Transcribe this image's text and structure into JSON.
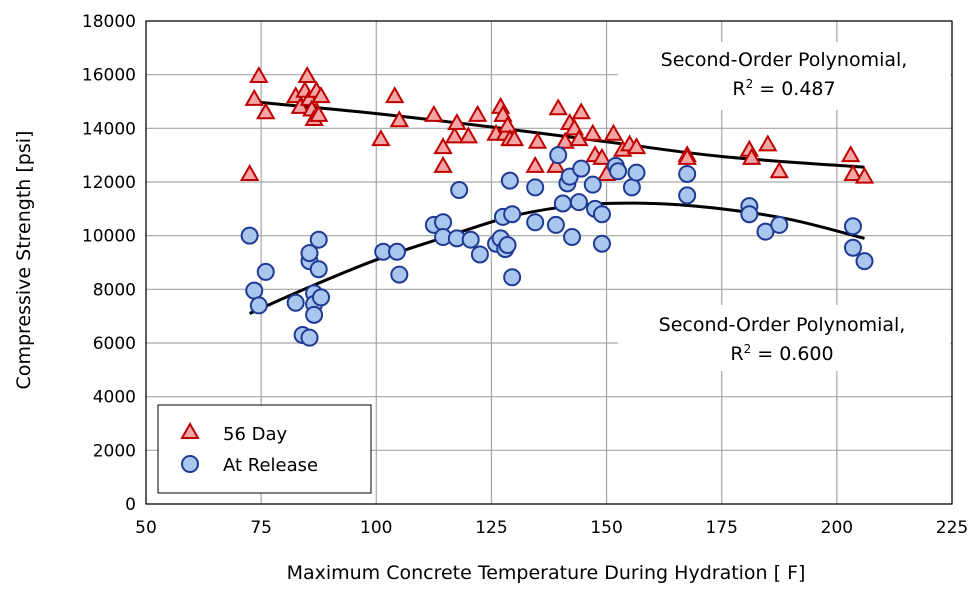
{
  "chart_data": {
    "type": "scatter",
    "xlabel": "Maximum Concrete Temperature During Hydration [ F]",
    "ylabel": "Compressive Strength [psi]",
    "xlim": [
      50,
      225
    ],
    "ylim": [
      0,
      18000
    ],
    "x_ticks": [
      "50",
      "75",
      "100",
      "125",
      "150",
      "175",
      "200",
      "225"
    ],
    "y_ticks": [
      "0",
      "2000",
      "4000",
      "6000",
      "8000",
      "10000",
      "12000",
      "14000",
      "16000",
      "18000"
    ],
    "x_tick_values": [
      50,
      75,
      100,
      125,
      150,
      175,
      200,
      225
    ],
    "y_tick_values": [
      0,
      2000,
      4000,
      6000,
      8000,
      10000,
      12000,
      14000,
      16000,
      18000
    ],
    "grid": true,
    "legend_position": "bottom-left",
    "series": [
      {
        "name": "56 Day",
        "marker": "triangle",
        "fill": "#F4A6A6",
        "stroke": "#C00000",
        "points": [
          [
            72.5,
            12300
          ],
          [
            73.5,
            15100
          ],
          [
            74.5,
            15950
          ],
          [
            76,
            14600
          ],
          [
            82.5,
            15200
          ],
          [
            83.5,
            14800
          ],
          [
            84.5,
            15400
          ],
          [
            85,
            15950
          ],
          [
            85.5,
            15100
          ],
          [
            86,
            14700
          ],
          [
            86.5,
            14350
          ],
          [
            87,
            15400
          ],
          [
            87.5,
            14500
          ],
          [
            88,
            15200
          ],
          [
            101,
            13600
          ],
          [
            104,
            15200
          ],
          [
            105,
            14300
          ],
          [
            112.5,
            14500
          ],
          [
            114.5,
            13300
          ],
          [
            114.5,
            12600
          ],
          [
            117,
            13700
          ],
          [
            117.5,
            14200
          ],
          [
            120,
            13700
          ],
          [
            122,
            14500
          ],
          [
            126,
            13800
          ],
          [
            127,
            14800
          ],
          [
            127.5,
            14500
          ],
          [
            128,
            13800
          ],
          [
            128.5,
            14100
          ],
          [
            129,
            13600
          ],
          [
            130,
            13600
          ],
          [
            134.5,
            12600
          ],
          [
            135,
            13500
          ],
          [
            139,
            12600
          ],
          [
            139.5,
            14750
          ],
          [
            141,
            13500
          ],
          [
            142,
            14200
          ],
          [
            143,
            14000
          ],
          [
            144,
            13600
          ],
          [
            144.5,
            14600
          ],
          [
            147,
            13800
          ],
          [
            147.5,
            13000
          ],
          [
            149,
            12900
          ],
          [
            150,
            12300
          ],
          [
            151.5,
            13800
          ],
          [
            153.5,
            13200
          ],
          [
            155,
            13400
          ],
          [
            156.5,
            13300
          ],
          [
            167.5,
            13000
          ],
          [
            167.5,
            12900
          ],
          [
            181,
            13200
          ],
          [
            181.5,
            12900
          ],
          [
            185,
            13400
          ],
          [
            187.5,
            12400
          ],
          [
            203,
            13000
          ],
          [
            203.5,
            12300
          ],
          [
            206,
            12200
          ]
        ]
      },
      {
        "name": "At Release",
        "marker": "circle",
        "fill": "#A9C6EE",
        "stroke": "#1F3A93",
        "points": [
          [
            72.5,
            10000
          ],
          [
            73.5,
            7950
          ],
          [
            74.5,
            7400
          ],
          [
            76,
            8650
          ],
          [
            82.5,
            7500
          ],
          [
            84,
            6300
          ],
          [
            85.5,
            6200
          ],
          [
            85.5,
            9050
          ],
          [
            85.5,
            9350
          ],
          [
            86.5,
            7850
          ],
          [
            86.5,
            7450
          ],
          [
            86.5,
            7050
          ],
          [
            87.5,
            9850
          ],
          [
            87.5,
            8750
          ],
          [
            88,
            7700
          ],
          [
            101.5,
            9400
          ],
          [
            104.5,
            9400
          ],
          [
            105,
            8550
          ],
          [
            112.5,
            10400
          ],
          [
            114.5,
            10500
          ],
          [
            114.5,
            9950
          ],
          [
            117.5,
            9900
          ],
          [
            118,
            11700
          ],
          [
            120.5,
            9850
          ],
          [
            122.5,
            9300
          ],
          [
            126,
            9700
          ],
          [
            127,
            9900
          ],
          [
            127.5,
            10700
          ],
          [
            128,
            9500
          ],
          [
            128.5,
            9650
          ],
          [
            129,
            12050
          ],
          [
            129.5,
            8450
          ],
          [
            129.5,
            10800
          ],
          [
            134.5,
            11800
          ],
          [
            134.5,
            10500
          ],
          [
            139,
            10400
          ],
          [
            139.5,
            13000
          ],
          [
            140.5,
            11200
          ],
          [
            141.5,
            11950
          ],
          [
            142,
            12200
          ],
          [
            142.5,
            9950
          ],
          [
            144,
            11250
          ],
          [
            144.5,
            12500
          ],
          [
            147,
            11900
          ],
          [
            147.5,
            11000
          ],
          [
            149,
            9700
          ],
          [
            149,
            10800
          ],
          [
            152,
            12600
          ],
          [
            152.5,
            12400
          ],
          [
            155.5,
            11800
          ],
          [
            156.5,
            12350
          ],
          [
            167.5,
            12300
          ],
          [
            167.5,
            11500
          ],
          [
            181,
            11100
          ],
          [
            181,
            10800
          ],
          [
            184.5,
            10150
          ],
          [
            187.5,
            10400
          ],
          [
            203.5,
            10350
          ],
          [
            203.5,
            9550
          ],
          [
            206,
            9050
          ]
        ]
      }
    ],
    "trendlines": [
      {
        "series": "56 Day",
        "type": "second-order polynomial",
        "label_line1": "Second-Order Polynomial,",
        "label_r2_prefix": "R",
        "label_r2_sup": "2",
        "label_r2_suffix": " = 0.487",
        "r2": 0.487,
        "points": [
          [
            72.5,
            15000
          ],
          [
            100,
            14550
          ],
          [
            125,
            14050
          ],
          [
            150,
            13500
          ],
          [
            175,
            12950
          ],
          [
            206,
            12550
          ]
        ]
      },
      {
        "series": "At Release",
        "type": "second-order polynomial",
        "label_line1": "Second-Order Polynomial,",
        "label_r2_prefix": "R",
        "label_r2_sup": "2",
        "label_r2_suffix": " = 0.600",
        "r2": 0.6,
        "points": [
          [
            72.5,
            7100
          ],
          [
            85,
            8050
          ],
          [
            100,
            9100
          ],
          [
            115,
            9950
          ],
          [
            130,
            10750
          ],
          [
            145,
            11150
          ],
          [
            160,
            11200
          ],
          [
            175,
            11000
          ],
          [
            190,
            10600
          ],
          [
            206,
            9900
          ]
        ]
      }
    ]
  }
}
